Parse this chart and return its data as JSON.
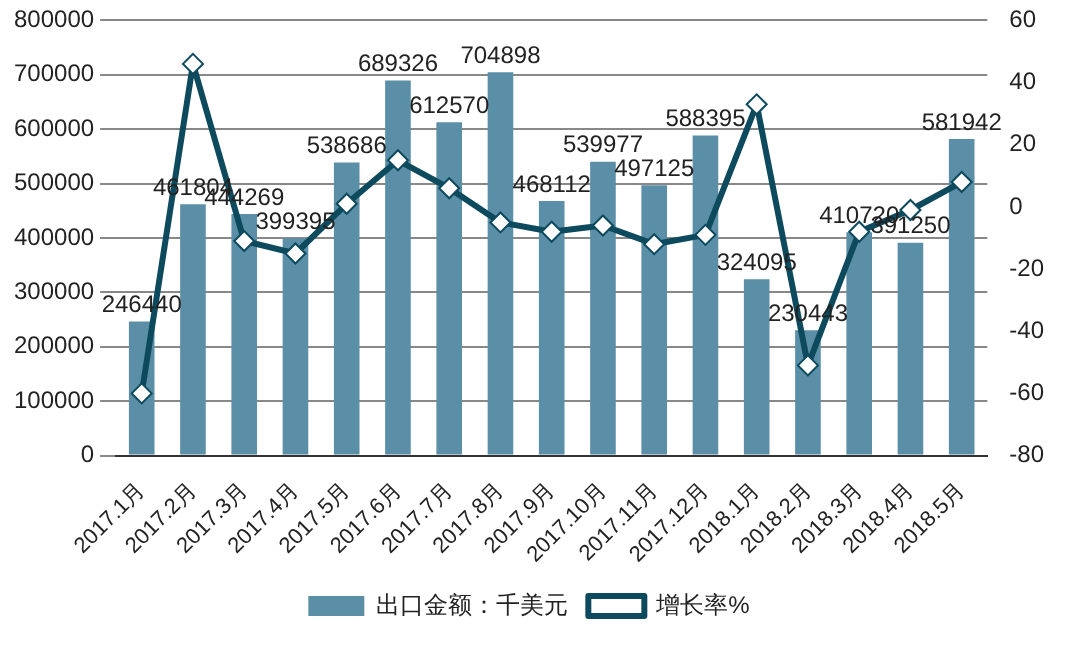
{
  "chart_data": {
    "type": "bar",
    "categories": [
      "2017.1月",
      "2017.2月",
      "2017.3月",
      "2017.4月",
      "2017.5月",
      "2017.6月",
      "2017.7月",
      "2017.8月",
      "2017.9月",
      "2017.10月",
      "2017.11月",
      "2017.12月",
      "2018.1月",
      "2018.2月",
      "2018.3月",
      "2018.4月",
      "2018.5月"
    ],
    "series": [
      {
        "name": "出口金额：千美元",
        "color": "#5b8fa8",
        "values": [
          246440,
          461804,
          444269,
          399395,
          538686,
          689326,
          612570,
          704898,
          468112,
          539977,
          497125,
          588395,
          324095,
          230443,
          410720,
          391250,
          581942
        ],
        "value_labels": [
          "246440",
          "461804",
          "444269",
          "399395",
          "538686",
          "689326",
          "612570",
          "704898",
          "468112",
          "539977",
          "497125",
          "588395",
          "324095",
          "230443",
          "410720",
          "391250",
          "581942"
        ]
      },
      {
        "name": "增长率%",
        "type": "line",
        "axis": "y2",
        "color": "#0e4a5e",
        "marker": "diamond",
        "values": [
          -60,
          46,
          -11,
          -15,
          1,
          15,
          6,
          -5,
          -8,
          -6,
          -12,
          -9,
          33,
          -51,
          -8,
          -1,
          8
        ]
      }
    ],
    "ylim": [
      0,
      800000
    ],
    "yticks": [
      0,
      100000,
      200000,
      300000,
      400000,
      500000,
      600000,
      700000,
      800000
    ],
    "y2lim": [
      -80,
      60
    ],
    "y2ticks": [
      -80,
      -60,
      -40,
      -20,
      0,
      20,
      40,
      60
    ],
    "grid": "y",
    "legend": "bottom"
  }
}
